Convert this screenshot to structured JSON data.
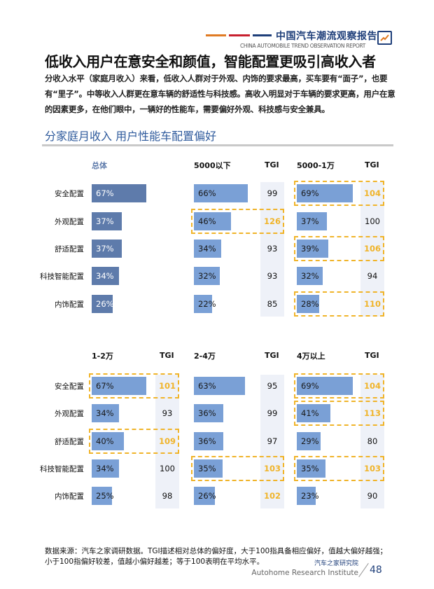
{
  "header": {
    "brand_title": "中国汽车潮流观察报告",
    "brand_subtitle": "CHINA AUTOMOBILE TREND OBSERVATION REPORT",
    "accent_colors": [
      "#e07b24",
      "#c8202f",
      "#1f3f7a"
    ],
    "icon": "trend-chart-icon"
  },
  "page_title": "低收入用户在意安全和颜值，智能配置更吸引高收入者",
  "paragraph": "分收入水平（家庭月收入）来看，低收入人群对于外观、内饰的要求最高，买车要有“面子”，也要有“里子”。中等收入人群更在意车辆的舒适性与科技感。高收入明显对于车辆的要求更高，用户在意的因素更多，在他们眼中，一辆好的性能车，需要偏好外观、科技感与安全兼具。",
  "section_title": "分家庭月收入  用户性能车配置偏好",
  "chart_data": {
    "type": "bar",
    "categories": [
      "安全配置",
      "外观配置",
      "舒适配置",
      "科技智能配置",
      "内饰配置"
    ],
    "tgi_label": "TGI",
    "unit": "%",
    "overall": {
      "name": "总体",
      "values": [
        67,
        37,
        37,
        34,
        26
      ]
    },
    "colors": {
      "overall": "#5e7bab",
      "group": "#7aa0d6",
      "highlight": "#f0b42a",
      "tgi_bg": "#eef1f8"
    },
    "series": [
      {
        "name": "5000以下",
        "values": [
          66,
          46,
          34,
          32,
          22
        ],
        "tgi": [
          99,
          126,
          93,
          93,
          85
        ],
        "highlighted": [
          false,
          true,
          false,
          false,
          false
        ]
      },
      {
        "name": "5000-1万",
        "values": [
          69,
          37,
          39,
          32,
          28
        ],
        "tgi": [
          104,
          100,
          106,
          94,
          110
        ],
        "highlighted": [
          true,
          false,
          true,
          false,
          true
        ]
      },
      {
        "name": "1-2万",
        "values": [
          67,
          34,
          40,
          34,
          25
        ],
        "tgi": [
          101,
          93,
          109,
          100,
          98
        ],
        "highlighted": [
          true,
          false,
          true,
          false,
          false
        ]
      },
      {
        "name": "2-4万",
        "values": [
          63,
          36,
          36,
          35,
          26
        ],
        "tgi": [
          95,
          99,
          97,
          103,
          102
        ],
        "highlighted": [
          false,
          false,
          false,
          true,
          false
        ]
      },
      {
        "name": "4万以上",
        "values": [
          69,
          41,
          29,
          35,
          23
        ],
        "tgi": [
          104,
          113,
          80,
          103,
          90
        ],
        "highlighted": [
          true,
          true,
          false,
          true,
          false
        ]
      }
    ]
  },
  "notes": [
    "数据来源：汽车之家调研数据。TGI描述相对总体的偏好度，大于100指具备相应偏好，值越大偏好越强；",
    "小于100指偏好较差，值越小偏好越差；等于100表明在平均水平。"
  ],
  "footer": {
    "institute_cn": "汽车之家研究院",
    "institute_en": "Autohome Research Institute",
    "page_number": "48"
  }
}
